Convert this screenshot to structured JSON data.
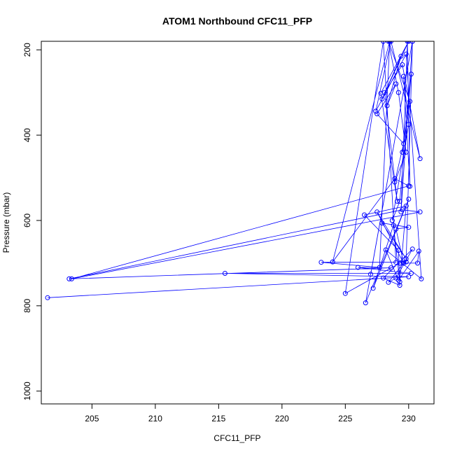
{
  "chart_data": {
    "type": "line",
    "title": "ATOM1 Northbound CFC11_PFP",
    "xlabel": "CFC11_PFP",
    "ylabel": "Pressure (mbar)",
    "xlim": [
      201.0,
      232.0
    ],
    "ylim": [
      1030,
      180
    ],
    "y_reversed": true,
    "xticks": [
      205,
      210,
      215,
      220,
      225,
      230
    ],
    "yticks": [
      200,
      400,
      600,
      800,
      1000
    ],
    "grid": false,
    "legend": "none",
    "line_color": "#0000ff",
    "marker": "open-circle",
    "series": [
      {
        "points": [
          [
            201.5,
            781
          ],
          [
            230.0,
            732
          ],
          [
            215.5,
            724
          ],
          [
            230.2,
            724
          ],
          [
            226.0,
            710
          ],
          [
            228.6,
            711
          ],
          [
            203.2,
            737
          ],
          [
            229.5,
            575
          ],
          [
            230.9,
            580
          ],
          [
            203.4,
            737
          ],
          [
            230.0,
            519
          ],
          [
            228.9,
            502
          ],
          [
            224.0,
            697
          ],
          [
            228.5,
            180
          ],
          [
            227.7,
            710
          ],
          [
            223.1,
            698
          ],
          [
            229.0,
            698
          ],
          [
            228.0,
            180
          ],
          [
            225.0,
            771
          ],
          [
            229.3,
            700
          ],
          [
            229.8,
            697
          ],
          [
            230.3,
            180
          ],
          [
            226.6,
            793
          ],
          [
            230.0,
            550
          ],
          [
            227.2,
            759
          ],
          [
            228.8,
            611
          ],
          [
            229.3,
            744
          ],
          [
            229.8,
            566
          ],
          [
            226.5,
            587
          ],
          [
            229.2,
            670
          ],
          [
            229.3,
            752
          ],
          [
            228.0,
            735
          ],
          [
            230.3,
            667
          ],
          [
            229.0,
            735
          ],
          [
            228.4,
            745
          ],
          [
            229.6,
            700
          ],
          [
            227.5,
            580
          ],
          [
            229.8,
            690
          ],
          [
            227.9,
            606
          ],
          [
            230.0,
            616
          ],
          [
            229.0,
            620
          ],
          [
            229.6,
            700
          ],
          [
            230.7,
            700
          ],
          [
            230.8,
            672
          ],
          [
            229.2,
            740
          ],
          [
            228.2,
            669
          ],
          [
            231.0,
            737
          ],
          [
            229.8,
            210
          ],
          [
            227.4,
            344
          ],
          [
            228.6,
            180
          ],
          [
            230.9,
            455
          ],
          [
            229.5,
            235
          ],
          [
            228.1,
            300
          ],
          [
            229.1,
            555
          ],
          [
            227.8,
            302
          ],
          [
            230.0,
            180
          ],
          [
            227.9,
            315
          ],
          [
            229.4,
            215
          ],
          [
            228.3,
            331
          ],
          [
            229.0,
            280
          ],
          [
            227.5,
            350
          ],
          [
            229.6,
            420
          ],
          [
            228.9,
            510
          ],
          [
            229.8,
            440
          ],
          [
            229.2,
            300
          ],
          [
            228.4,
            180
          ],
          [
            230.1,
            321
          ],
          [
            229.5,
            440
          ],
          [
            230.2,
            257
          ],
          [
            229.3,
            555
          ],
          [
            228.7,
            600
          ],
          [
            230.0,
            375
          ],
          [
            229.6,
            262
          ],
          [
            230.1,
            520
          ],
          [
            229.9,
            180
          ],
          [
            229.4,
            580
          ],
          [
            230.3,
            180
          ],
          [
            227.0,
            726
          ]
        ]
      }
    ]
  }
}
